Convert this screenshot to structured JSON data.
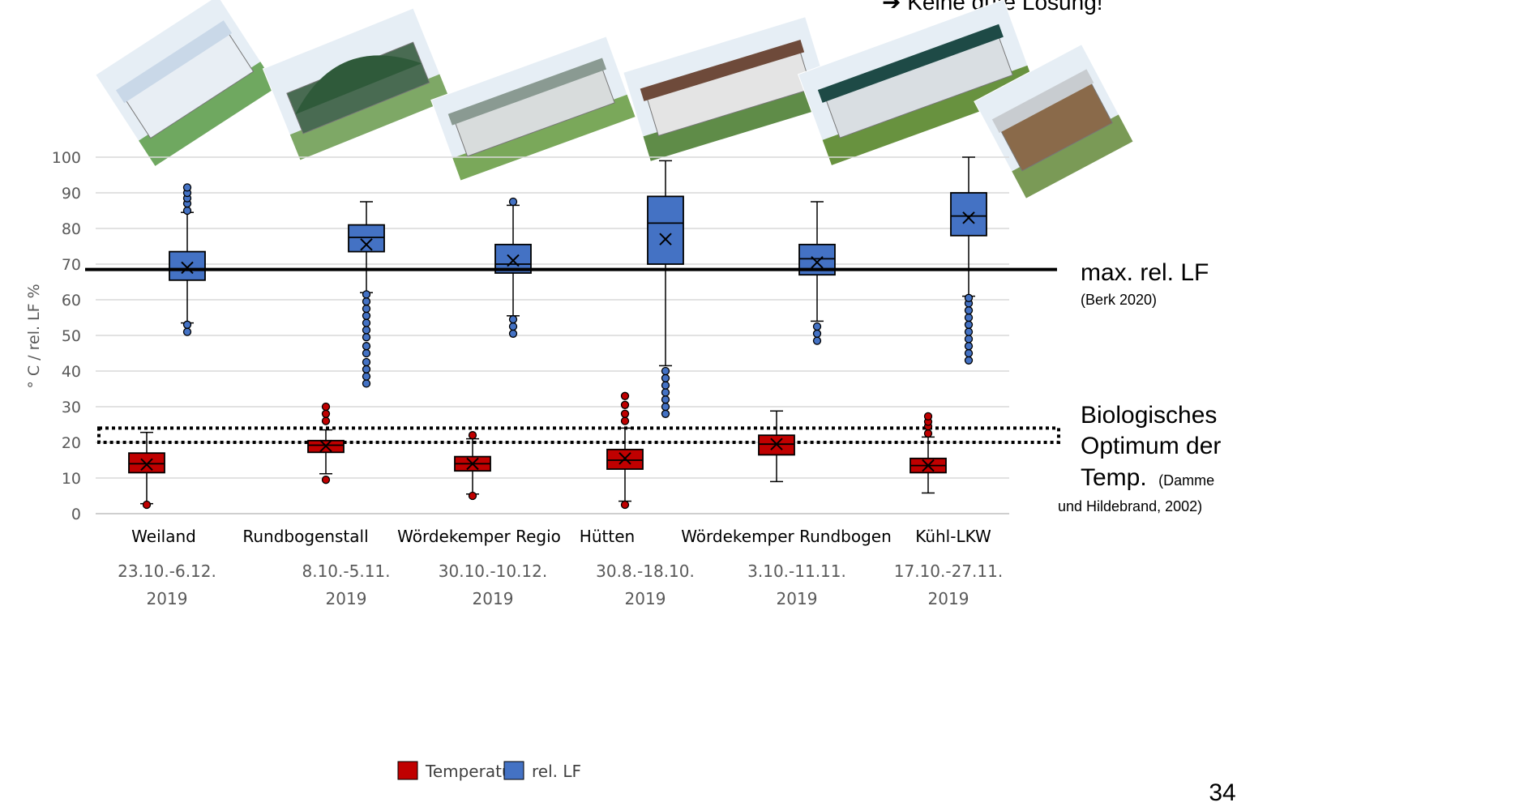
{
  "top_note": "➔ Keine gute Lösung!",
  "page_number": "34",
  "annotations": {
    "max_rel_lf": {
      "title": "max. rel. LF",
      "source": "(Berk 2020)",
      "value": 68.5
    },
    "bio_optimum": {
      "lines": [
        "Biologisches",
        "Optimum der",
        "Temp."
      ],
      "source_inline": "(Damme",
      "source_line2": "und Hildebrand, 2002)",
      "range": [
        20,
        24
      ]
    }
  },
  "photos": [
    {
      "name": "Weiland",
      "palette": [
        "#c9d8e8",
        "#e8eef4",
        "#6fa860"
      ]
    },
    {
      "name": "Rundbogenstall",
      "palette": [
        "#2f5a3a",
        "#496b52",
        "#7ea866"
      ]
    },
    {
      "name": "Wördekemper Regio",
      "palette": [
        "#8a9a92",
        "#d8dcdc",
        "#7aa85a"
      ]
    },
    {
      "name": "Hütten",
      "palette": [
        "#6e4a3a",
        "#e4e4e4",
        "#5f8c48"
      ]
    },
    {
      "name": "Wördekemper Rundbogen",
      "palette": [
        "#1e4a46",
        "#d9dee2",
        "#68923f"
      ]
    },
    {
      "name": "Kühl-LKW",
      "palette": [
        "#c8ccd0",
        "#8a6a4a",
        "#7a9a56"
      ]
    }
  ],
  "chart_data": {
    "type": "boxplot",
    "ylabel": "° C / rel. LF %",
    "ylim": [
      0,
      100
    ],
    "yticks": [
      0,
      10,
      20,
      30,
      40,
      50,
      60,
      70,
      80,
      90,
      100
    ],
    "grid": true,
    "legend_position": "bottom",
    "categories": [
      {
        "label": "Weiland",
        "period": "23.10.-6.12.",
        "year": "2019"
      },
      {
        "label": "Rundbogenstall",
        "period": "8.10.-5.11.",
        "year": "2019"
      },
      {
        "label": "Wördekemper Regio",
        "period": "30.10.-10.12.",
        "year": "2019"
      },
      {
        "label": "Hütten",
        "period": "30.8.-18.10.",
        "year": "2019"
      },
      {
        "label": "Wördekemper Rundbogen",
        "period": "3.10.-11.11.",
        "year": "2019"
      },
      {
        "label": "Kühl-LKW",
        "period": "17.10.-27.11.",
        "year": "2019"
      }
    ],
    "series": [
      {
        "name": "Temperatur",
        "color": "#c00000",
        "boxes": [
          {
            "min": 2.8,
            "q1": 11.5,
            "median": 14,
            "q3": 17,
            "max": 22.8,
            "mean": 13.8,
            "outliers": [
              2.5
            ]
          },
          {
            "min": 11.2,
            "q1": 17.2,
            "median": 19.2,
            "q3": 20.5,
            "max": 23.5,
            "mean": 19,
            "outliers": [
              9.5,
              26,
              28,
              30
            ]
          },
          {
            "min": 5.5,
            "q1": 12,
            "median": 14,
            "q3": 16,
            "max": 21,
            "mean": 14,
            "outliers": [
              5,
              22
            ]
          },
          {
            "min": 3.5,
            "q1": 12.5,
            "median": 15,
            "q3": 18,
            "max": 24,
            "mean": 15.5,
            "outliers": [
              2.5,
              26,
              28,
              30.5,
              33
            ]
          },
          {
            "min": 9,
            "q1": 16.5,
            "median": 19.5,
            "q3": 22,
            "max": 28.8,
            "mean": 19.5,
            "outliers": []
          },
          {
            "min": 5.8,
            "q1": 11.5,
            "median": 13.5,
            "q3": 15.5,
            "max": 21.5,
            "mean": 13.5,
            "outliers": [
              22.5,
              24.5,
              25.8,
              27.3
            ]
          }
        ]
      },
      {
        "name": "rel. LF",
        "color": "#4472c4",
        "boxes": [
          {
            "min": 53.5,
            "q1": 65.5,
            "median": 68.5,
            "q3": 73.5,
            "max": 84.5,
            "mean": 69,
            "outliers": [
              51,
              53,
              85,
              87,
              88.5,
              90,
              91.5
            ]
          },
          {
            "min": 62,
            "q1": 73.5,
            "median": 77.5,
            "q3": 81,
            "max": 87.5,
            "mean": 75.5,
            "outliers": [
              36.5,
              38.5,
              40.5,
              42.5,
              45,
              47,
              49.5,
              51.5,
              53.5,
              55.5,
              57.5,
              59.5,
              61.5
            ]
          },
          {
            "min": 55.5,
            "q1": 67.5,
            "median": 70,
            "q3": 75.5,
            "max": 86.5,
            "mean": 71,
            "outliers": [
              50.5,
              52.5,
              54.5,
              87.5
            ]
          },
          {
            "min": 41.5,
            "q1": 70,
            "median": 81.5,
            "q3": 89,
            "max": 99,
            "mean": 77,
            "outliers": [
              28,
              30,
              32,
              34,
              36,
              38,
              40
            ]
          },
          {
            "min": 54,
            "q1": 67,
            "median": 71.5,
            "q3": 75.5,
            "max": 87.5,
            "mean": 70.5,
            "outliers": [
              48.5,
              50.5,
              52.5
            ]
          },
          {
            "min": 61,
            "q1": 78,
            "median": 83.5,
            "q3": 90,
            "max": 100,
            "mean": 83,
            "outliers": [
              43,
              45,
              47,
              49,
              51,
              53,
              55,
              57,
              59,
              60.5
            ]
          }
        ]
      }
    ]
  }
}
